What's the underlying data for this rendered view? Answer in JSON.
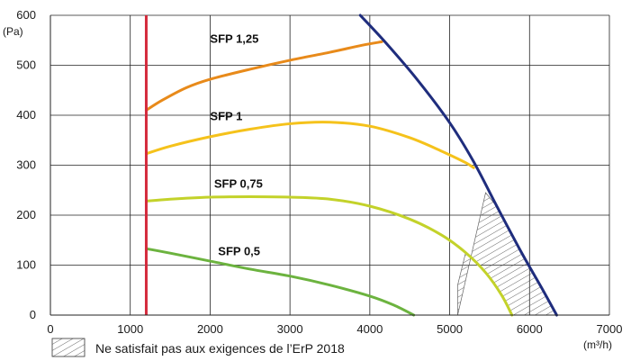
{
  "chart_data": {
    "type": "line",
    "title": "",
    "xlabel": "",
    "ylabel": "",
    "x_unit": "(m³/h)",
    "y_unit": "(Pa)",
    "xlim": [
      0,
      7000
    ],
    "ylim": [
      0,
      600
    ],
    "x_ticks": [
      "0",
      "1000",
      "2000",
      "3000",
      "4000",
      "5000",
      "6000",
      "7000"
    ],
    "y_ticks": [
      "0",
      "100",
      "200",
      "300",
      "400",
      "500",
      "600"
    ],
    "grid": true,
    "vertical_limit": {
      "x": 1200,
      "color": "#d42a3c"
    },
    "series": [
      {
        "name": "SFP 1,25",
        "color": "#e88a1a",
        "points": [
          [
            1200,
            410
          ],
          [
            1400,
            430
          ],
          [
            1700,
            455
          ],
          [
            2000,
            472
          ],
          [
            2500,
            492
          ],
          [
            3000,
            510
          ],
          [
            3500,
            526
          ],
          [
            3900,
            540
          ],
          [
            4150,
            547
          ]
        ]
      },
      {
        "name": "SFP 1",
        "color": "#f5c21b",
        "points": [
          [
            1200,
            323
          ],
          [
            1500,
            338
          ],
          [
            2000,
            357
          ],
          [
            2500,
            372
          ],
          [
            3000,
            383
          ],
          [
            3500,
            386
          ],
          [
            4000,
            378
          ],
          [
            4500,
            355
          ],
          [
            4900,
            328
          ],
          [
            5200,
            305
          ],
          [
            5300,
            295
          ]
        ]
      },
      {
        "name": "SFP 0,75",
        "color": "#c3d22a",
        "points": [
          [
            1200,
            228
          ],
          [
            1500,
            232
          ],
          [
            2000,
            236
          ],
          [
            2500,
            237
          ],
          [
            3000,
            236
          ],
          [
            3500,
            232
          ],
          [
            4000,
            218
          ],
          [
            4500,
            192
          ],
          [
            4900,
            160
          ],
          [
            5200,
            125
          ],
          [
            5450,
            85
          ],
          [
            5650,
            40
          ],
          [
            5780,
            0
          ]
        ]
      },
      {
        "name": "SFP 0,5",
        "color": "#6cb33f",
        "points": [
          [
            1200,
            133
          ],
          [
            1500,
            124
          ],
          [
            2000,
            108
          ],
          [
            2500,
            92
          ],
          [
            3000,
            78
          ],
          [
            3500,
            60
          ],
          [
            4000,
            38
          ],
          [
            4300,
            20
          ],
          [
            4550,
            0
          ]
        ]
      },
      {
        "name": "",
        "color": "#1f2d7d",
        "points": [
          [
            3880,
            600
          ],
          [
            4200,
            545
          ],
          [
            4600,
            470
          ],
          [
            5000,
            385
          ],
          [
            5300,
            307
          ],
          [
            5600,
            215
          ],
          [
            5900,
            125
          ],
          [
            6150,
            55
          ],
          [
            6340,
            0
          ]
        ]
      }
    ],
    "hatched_region": {
      "legend_label": "Ne satisfait pas aux exigences de l’ErP 2018",
      "polygon": [
        [
          5450,
          245
        ],
        [
          5600,
          215
        ],
        [
          5900,
          125
        ],
        [
          6150,
          55
        ],
        [
          6340,
          0
        ],
        [
          5780,
          0
        ],
        [
          5650,
          40
        ],
        [
          5450,
          85
        ],
        [
          5200,
          125
        ],
        [
          5100,
          60
        ],
        [
          5100,
          0
        ]
      ]
    },
    "label_positions_data": [
      {
        "text": "SFP 1,25",
        "x": 2000,
        "y": 545
      },
      {
        "text": "SFP 1",
        "x": 2000,
        "y": 390
      },
      {
        "text": "SFP 0,75",
        "x": 2050,
        "y": 255
      },
      {
        "text": "SFP 0,5",
        "x": 2100,
        "y": 120
      }
    ]
  }
}
